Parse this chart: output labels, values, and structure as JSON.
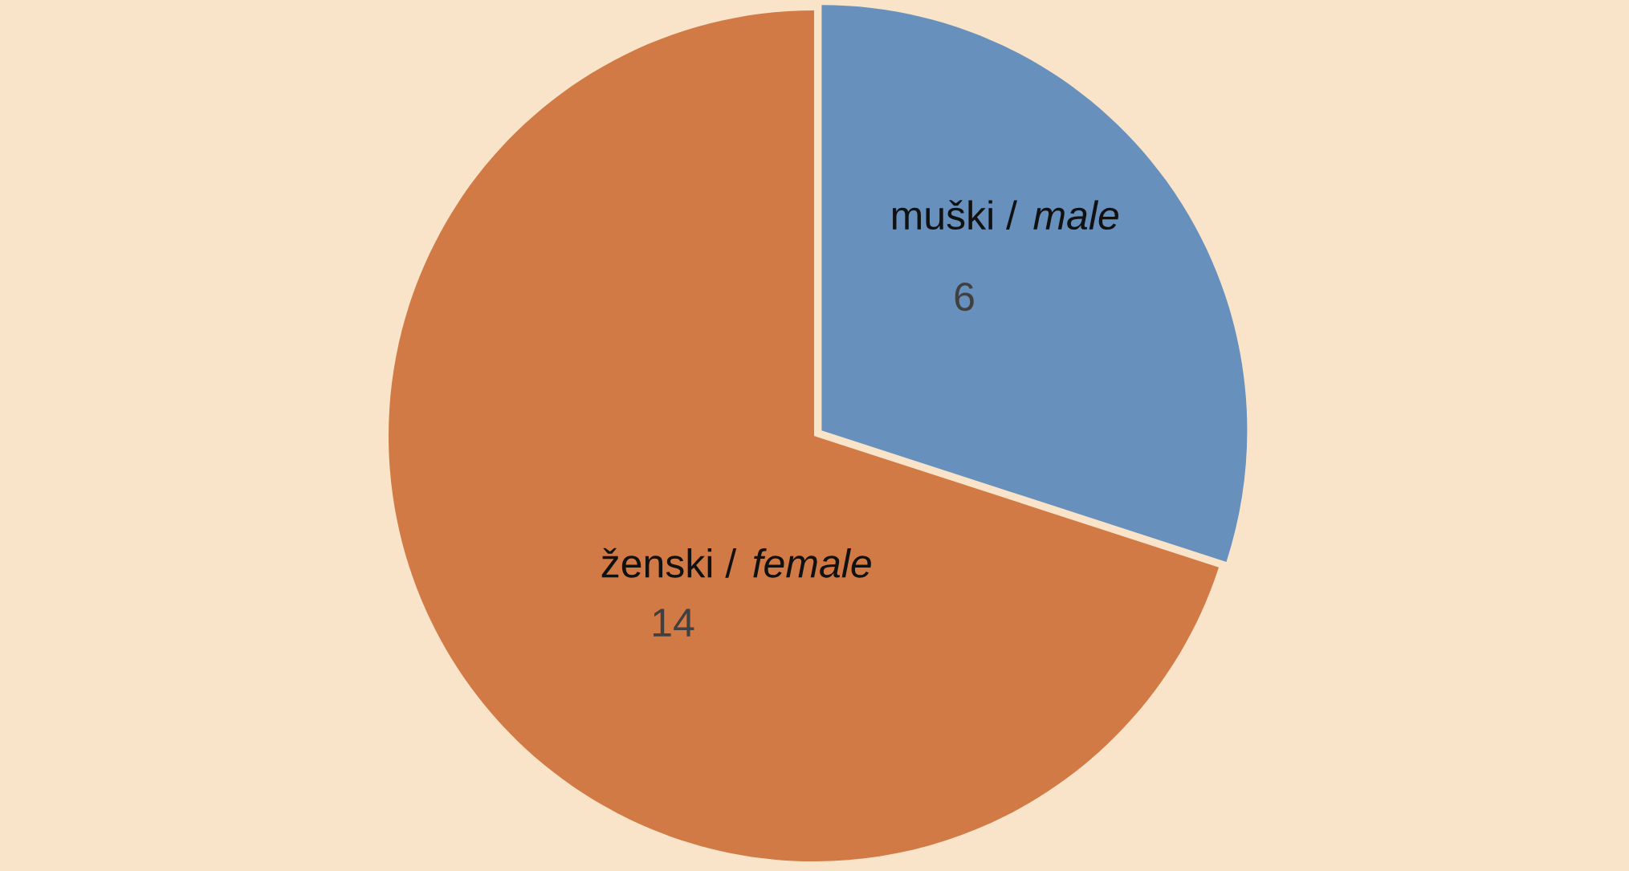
{
  "chart_data": {
    "type": "pie",
    "categories": [
      "muški / male",
      "ženski / female"
    ],
    "values": [
      6,
      14
    ],
    "colors": [
      "#6790bd",
      "#d27a45"
    ],
    "data_labels": true,
    "legend": false
  }
}
